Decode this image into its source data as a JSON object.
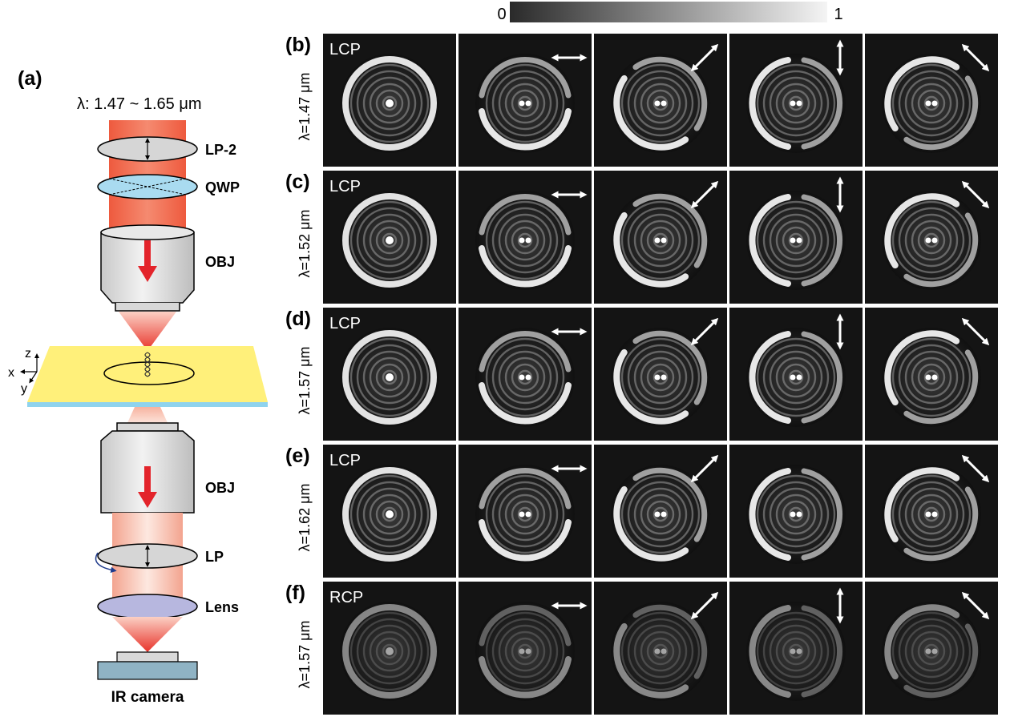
{
  "colorbar": {
    "min_label": "0",
    "max_label": "1"
  },
  "setup": {
    "panel_label": "(a)",
    "wavelength_text": "λ: 1.47 ~ 1.65 μm",
    "components": [
      "LP-2",
      "QWP",
      "OBJ",
      "OBJ",
      "LP",
      "Lens"
    ],
    "camera_label": "IR camera",
    "axes": {
      "x": "x",
      "y": "y",
      "z": "z"
    }
  },
  "rows": [
    {
      "label": "(b)",
      "wavelength": "λ=1.47 μm",
      "input": "LCP",
      "arrows": [
        "horizontal",
        "diag-ne",
        "vertical",
        "diag-nw"
      ]
    },
    {
      "label": "(c)",
      "wavelength": "λ=1.52 μm",
      "input": "LCP",
      "arrows": [
        "horizontal",
        "diag-ne",
        "vertical",
        "diag-nw"
      ]
    },
    {
      "label": "(d)",
      "wavelength": "λ=1.57 μm",
      "input": "LCP",
      "arrows": [
        "horizontal",
        "diag-ne",
        "vertical",
        "diag-nw"
      ]
    },
    {
      "label": "(e)",
      "wavelength": "λ=1.62 μm",
      "input": "LCP",
      "arrows": [
        "horizontal",
        "diag-ne",
        "none",
        "diag-nw"
      ]
    },
    {
      "label": "(f)",
      "wavelength": "λ=1.57 μm",
      "input": "RCP",
      "arrows": [
        "horizontal",
        "diag-ne",
        "vertical",
        "diag-nw"
      ]
    }
  ],
  "colors": {
    "beam": "#f37355",
    "qwp": "#a9dbf0",
    "lens": "#b7b7df",
    "sample": "#fff07a",
    "substrate": "#8fd3ee",
    "arrow": "#e3242b"
  }
}
